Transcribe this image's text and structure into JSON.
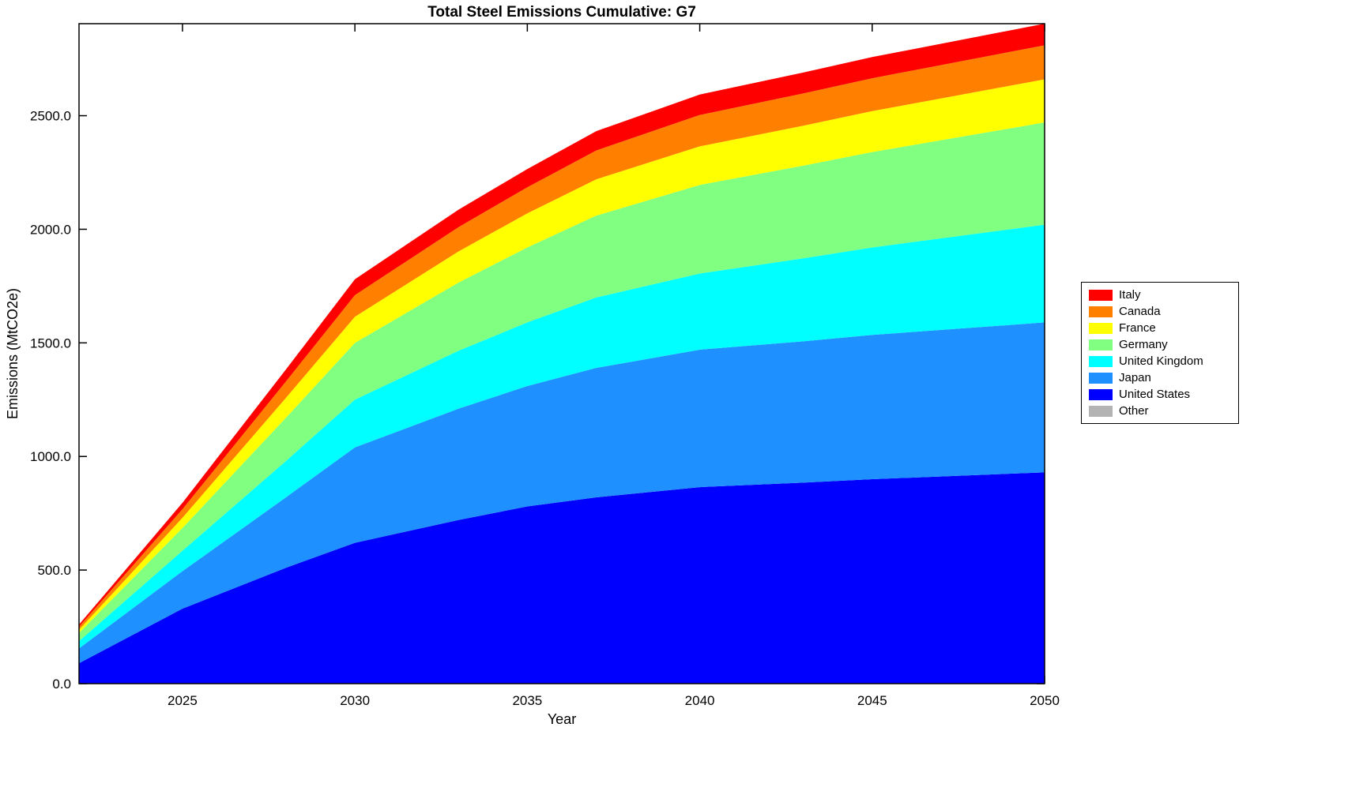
{
  "figure": {
    "background": "#FFFFFF"
  },
  "chart_data": {
    "type": "area",
    "stacked": true,
    "title": "Total Steel Emissions Cumulative: G7",
    "xlabel": "Year",
    "ylabel": "Emissions (MtCO2e)",
    "xlim": [
      2022,
      2050
    ],
    "ylim": [
      0,
      2905
    ],
    "grid": false,
    "legend_position": "right-outside",
    "xticks": [
      2025,
      2030,
      2035,
      2040,
      2045,
      2050
    ],
    "xtick_labels": [
      "2025",
      "2030",
      "2035",
      "2040",
      "2045",
      "2050"
    ],
    "yticks": [
      0,
      500,
      1000,
      1500,
      2000,
      2500
    ],
    "ytick_labels": [
      "0.0",
      "500.0",
      "1000.0",
      "1500.0",
      "2000.0",
      "2500.0"
    ],
    "x": [
      2022,
      2025,
      2028,
      2030,
      2033,
      2035,
      2037,
      2040,
      2043,
      2045,
      2050
    ],
    "series": [
      {
        "name": "United States",
        "color": "#0000FF",
        "values": [
          90,
          330,
          510,
          620,
          720,
          780,
          820,
          865,
          885,
          900,
          930
        ]
      },
      {
        "name": "Japan",
        "color": "#1E90FF",
        "values": [
          65,
          165,
          310,
          420,
          490,
          530,
          570,
          605,
          622,
          635,
          660
        ]
      },
      {
        "name": "United Kingdom",
        "color": "#00FFFF",
        "values": [
          32,
          90,
          160,
          210,
          255,
          280,
          310,
          335,
          365,
          385,
          430
        ]
      },
      {
        "name": "Germany",
        "color": "#80FF80",
        "values": [
          36,
          100,
          190,
          250,
          300,
          330,
          360,
          390,
          408,
          420,
          450
        ]
      },
      {
        "name": "France",
        "color": "#FFFF00",
        "values": [
          14,
          45,
          88,
          115,
          137,
          150,
          160,
          170,
          176,
          180,
          190
        ]
      },
      {
        "name": "Canada",
        "color": "#FF8000",
        "values": [
          13,
          38,
          72,
          95,
          107,
          115,
          127,
          138,
          142,
          145,
          150
        ]
      },
      {
        "name": "Italy",
        "color": "#FF0000",
        "values": [
          10,
          28,
          53,
          70,
          77,
          80,
          85,
          90,
          92,
          93,
          95
        ]
      },
      {
        "name": "Other",
        "color": "#B3B3B3",
        "values": [
          0,
          0,
          0,
          0,
          0,
          0,
          0,
          0,
          0,
          0,
          0
        ]
      }
    ],
    "legend": [
      {
        "label": "Italy",
        "color": "#FF0000"
      },
      {
        "label": "Canada",
        "color": "#FF8000"
      },
      {
        "label": "France",
        "color": "#FFFF00"
      },
      {
        "label": "Germany",
        "color": "#80FF80"
      },
      {
        "label": "United Kingdom",
        "color": "#00FFFF"
      },
      {
        "label": "Japan",
        "color": "#1E90FF"
      },
      {
        "label": "United States",
        "color": "#0000FF"
      },
      {
        "label": "Other",
        "color": "#B3B3B3"
      }
    ]
  }
}
